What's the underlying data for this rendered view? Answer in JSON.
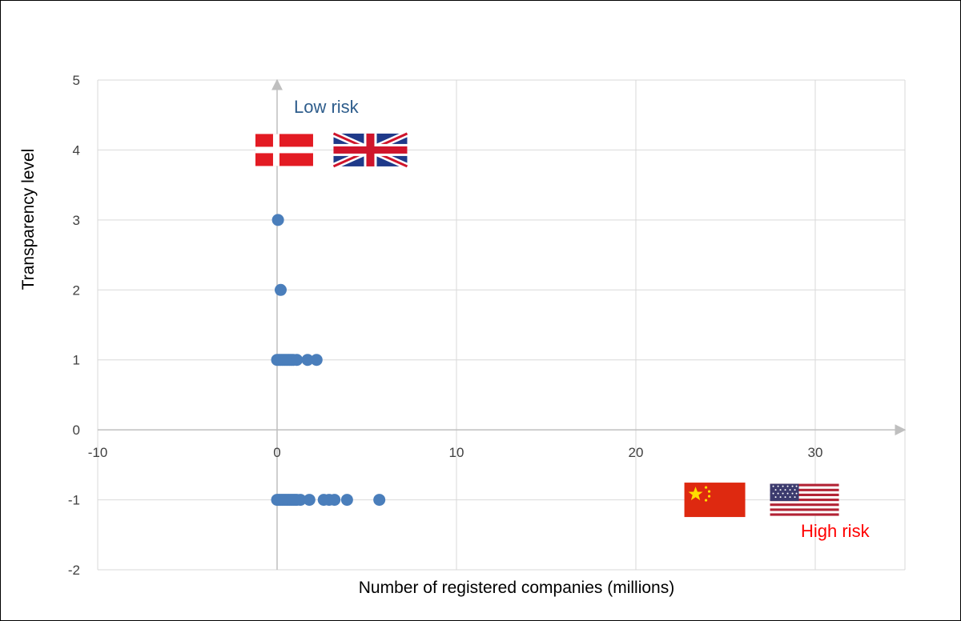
{
  "chart_data": {
    "type": "scatter",
    "title": "",
    "xlabel": "Number of registered companies (millions)",
    "ylabel": "Transparency level",
    "xlim": [
      -10,
      35
    ],
    "ylim": [
      -2,
      5
    ],
    "x_ticks": [
      -10,
      0,
      10,
      20,
      30
    ],
    "y_ticks": [
      -2,
      -1,
      0,
      1,
      2,
      3,
      4,
      5
    ],
    "grid": true,
    "legend": "none",
    "point_color": "#4a7ebb",
    "points": [
      {
        "x": 0.05,
        "y": 3
      },
      {
        "x": 0.2,
        "y": 2
      },
      {
        "x": 0.0,
        "y": 1
      },
      {
        "x": 0.1,
        "y": 1
      },
      {
        "x": 0.2,
        "y": 1
      },
      {
        "x": 0.3,
        "y": 1
      },
      {
        "x": 0.4,
        "y": 1
      },
      {
        "x": 0.5,
        "y": 1
      },
      {
        "x": 0.6,
        "y": 1
      },
      {
        "x": 0.7,
        "y": 1
      },
      {
        "x": 0.8,
        "y": 1
      },
      {
        "x": 0.9,
        "y": 1
      },
      {
        "x": 1.1,
        "y": 1
      },
      {
        "x": 1.7,
        "y": 1
      },
      {
        "x": 2.2,
        "y": 1
      },
      {
        "x": 0.0,
        "y": -1
      },
      {
        "x": 0.1,
        "y": -1
      },
      {
        "x": 0.2,
        "y": -1
      },
      {
        "x": 0.3,
        "y": -1
      },
      {
        "x": 0.4,
        "y": -1
      },
      {
        "x": 0.5,
        "y": -1
      },
      {
        "x": 0.6,
        "y": -1
      },
      {
        "x": 0.7,
        "y": -1
      },
      {
        "x": 0.8,
        "y": -1
      },
      {
        "x": 0.9,
        "y": -1
      },
      {
        "x": 1.0,
        "y": -1
      },
      {
        "x": 1.1,
        "y": -1
      },
      {
        "x": 1.3,
        "y": -1
      },
      {
        "x": 1.8,
        "y": -1
      },
      {
        "x": 2.6,
        "y": -1
      },
      {
        "x": 2.9,
        "y": -1
      },
      {
        "x": 3.2,
        "y": -1
      },
      {
        "x": 3.9,
        "y": -1
      },
      {
        "x": 5.7,
        "y": -1
      }
    ],
    "annotations": [
      {
        "text": "Low risk",
        "color": "#2e5d8c"
      },
      {
        "text": "High risk",
        "color": "#ff0000"
      }
    ],
    "flags": [
      {
        "icon": "denmark-flag-icon",
        "x": 0.4,
        "y": 4
      },
      {
        "icon": "uk-flag-icon",
        "x": 5.2,
        "y": 4
      },
      {
        "icon": "china-flag-icon",
        "x": 24.4,
        "y": -1
      },
      {
        "icon": "usa-flag-icon",
        "x": 29.4,
        "y": -1
      }
    ]
  }
}
